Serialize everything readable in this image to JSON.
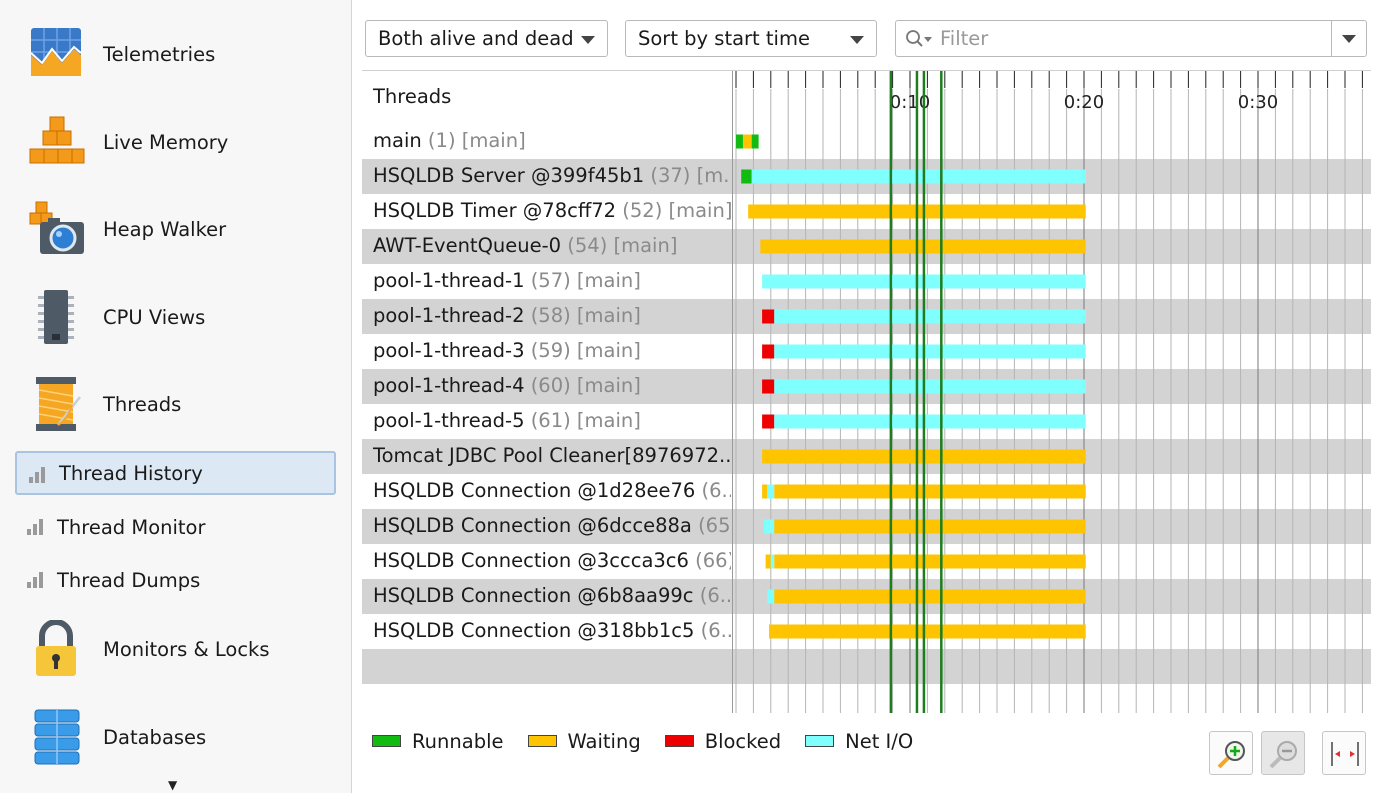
{
  "sidebar": {
    "items": [
      {
        "label": "Telemetries",
        "icon": "telemetries-icon"
      },
      {
        "label": "Live Memory",
        "icon": "live-memory-icon"
      },
      {
        "label": "Heap Walker",
        "icon": "heap-walker-icon"
      },
      {
        "label": "CPU Views",
        "icon": "cpu-views-icon"
      },
      {
        "label": "Threads",
        "icon": "threads-icon"
      },
      {
        "label": "Thread History",
        "icon": "bar-chart-icon",
        "selected": true
      },
      {
        "label": "Thread Monitor",
        "icon": "bar-chart-icon"
      },
      {
        "label": "Thread Dumps",
        "icon": "bar-chart-icon"
      },
      {
        "label": "Monitors & Locks",
        "icon": "padlock-icon"
      },
      {
        "label": "Databases",
        "icon": "database-icon"
      }
    ]
  },
  "toolbar": {
    "thread_filter": "Both alive and dead",
    "sort": "Sort by start time",
    "filter_placeholder": "Filter"
  },
  "table": {
    "header": "Threads",
    "rows": [
      {
        "name": "main",
        "meta": " (1) [main]"
      },
      {
        "name": "HSQLDB Server @399f45b1",
        "meta": " (37) [m..."
      },
      {
        "name": "HSQLDB Timer @78cff72",
        "meta": " (52) [main]"
      },
      {
        "name": "AWT-EventQueue-0",
        "meta": " (54) [main]"
      },
      {
        "name": "pool-1-thread-1",
        "meta": " (57) [main]"
      },
      {
        "name": "pool-1-thread-2",
        "meta": " (58) [main]"
      },
      {
        "name": "pool-1-thread-3",
        "meta": " (59) [main]"
      },
      {
        "name": "pool-1-thread-4",
        "meta": " (60) [main]"
      },
      {
        "name": "pool-1-thread-5",
        "meta": " (61) [main]"
      },
      {
        "name": "Tomcat JDBC Pool Cleaner[8976972...",
        "meta": ""
      },
      {
        "name": "HSQLDB Connection @1d28ee76",
        "meta": " (6..."
      },
      {
        "name": "HSQLDB Connection @6dcce88a",
        "meta": " (65)..."
      },
      {
        "name": "HSQLDB Connection @3ccca3c6",
        "meta": " (66)..."
      },
      {
        "name": "HSQLDB Connection @6b8aa99c",
        "meta": " (6..."
      },
      {
        "name": "HSQLDB Connection @318bb1c5",
        "meta": " (6..."
      }
    ]
  },
  "timeline": {
    "axis": {
      "start_s": 0,
      "end_s": 36,
      "ticks": [
        {
          "t": 10,
          "label": "0:10"
        },
        {
          "t": 20,
          "label": "0:20"
        },
        {
          "t": 30,
          "label": "0:30"
        }
      ],
      "minor_step_s": 1
    },
    "markers_s": [
      8.9,
      10.4,
      10.8,
      11.8
    ],
    "colors": {
      "runnable": "#11bb11",
      "waiting": "#ffc400",
      "blocked": "#ee0000",
      "netio": "#80ffff",
      "marker": "#1e7d1e"
    },
    "threads": [
      {
        "segments": [
          {
            "s": 0.0,
            "e": 0.4,
            "state": "runnable"
          },
          {
            "s": 0.4,
            "e": 0.9,
            "state": "waiting"
          },
          {
            "s": 0.9,
            "e": 1.3,
            "state": "runnable"
          }
        ]
      },
      {
        "segments": [
          {
            "s": 0.3,
            "e": 0.9,
            "state": "runnable"
          },
          {
            "s": 0.9,
            "e": 20.1,
            "state": "netio"
          }
        ]
      },
      {
        "segments": [
          {
            "s": 0.7,
            "e": 20.1,
            "state": "waiting"
          }
        ]
      },
      {
        "segments": [
          {
            "s": 1.4,
            "e": 20.1,
            "state": "waiting"
          }
        ]
      },
      {
        "segments": [
          {
            "s": 1.5,
            "e": 20.1,
            "state": "netio"
          }
        ]
      },
      {
        "segments": [
          {
            "s": 1.5,
            "e": 2.2,
            "state": "blocked"
          },
          {
            "s": 2.2,
            "e": 20.1,
            "state": "netio"
          }
        ]
      },
      {
        "segments": [
          {
            "s": 1.5,
            "e": 2.2,
            "state": "blocked"
          },
          {
            "s": 2.2,
            "e": 20.1,
            "state": "netio"
          }
        ]
      },
      {
        "segments": [
          {
            "s": 1.5,
            "e": 2.2,
            "state": "blocked"
          },
          {
            "s": 2.2,
            "e": 20.1,
            "state": "netio"
          }
        ]
      },
      {
        "segments": [
          {
            "s": 1.5,
            "e": 2.2,
            "state": "blocked"
          },
          {
            "s": 2.2,
            "e": 20.1,
            "state": "netio"
          }
        ]
      },
      {
        "segments": [
          {
            "s": 1.5,
            "e": 20.1,
            "state": "waiting"
          }
        ]
      },
      {
        "segments": [
          {
            "s": 1.5,
            "e": 1.8,
            "state": "waiting"
          },
          {
            "s": 1.8,
            "e": 2.2,
            "state": "netio"
          },
          {
            "s": 2.2,
            "e": 20.1,
            "state": "waiting"
          }
        ]
      },
      {
        "segments": [
          {
            "s": 1.6,
            "e": 2.2,
            "state": "netio"
          },
          {
            "s": 2.2,
            "e": 20.1,
            "state": "waiting"
          }
        ]
      },
      {
        "segments": [
          {
            "s": 1.7,
            "e": 2.0,
            "state": "waiting"
          },
          {
            "s": 2.0,
            "e": 2.2,
            "state": "netio"
          },
          {
            "s": 2.2,
            "e": 20.1,
            "state": "waiting"
          }
        ]
      },
      {
        "segments": [
          {
            "s": 1.8,
            "e": 2.2,
            "state": "netio"
          },
          {
            "s": 2.2,
            "e": 20.1,
            "state": "waiting"
          }
        ]
      },
      {
        "segments": [
          {
            "s": 1.9,
            "e": 20.1,
            "state": "waiting"
          }
        ]
      }
    ]
  },
  "legend": [
    {
      "label": "Runnable",
      "color": "#11bb11"
    },
    {
      "label": "Waiting",
      "color": "#ffc400"
    },
    {
      "label": "Blocked",
      "color": "#ee0000"
    },
    {
      "label": "Net I/O",
      "color": "#80ffff"
    }
  ]
}
